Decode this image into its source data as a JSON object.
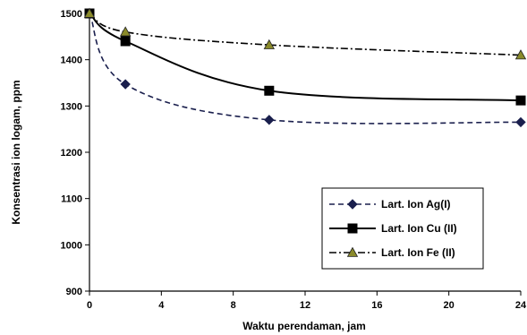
{
  "chart_data": {
    "type": "line",
    "title": "",
    "xlabel": "Waktu perendaman, jam",
    "ylabel": "Konsentrasi ion logam, ppm",
    "xlim": [
      0,
      24
    ],
    "ylim": [
      900,
      1500
    ],
    "xticks": [
      "0",
      "4",
      "8",
      "12",
      "16",
      "20",
      "24"
    ],
    "yticks": [
      "900",
      "1000",
      "1100",
      "1200",
      "1300",
      "1400",
      "1500"
    ],
    "grid": false,
    "legend_position": "bottom-right",
    "series": [
      {
        "name": "Lart. Ion Ag(I)",
        "marker": "diamond",
        "dash": "dashed",
        "color": "#1a1f4d",
        "x": [
          0,
          2,
          10,
          24
        ],
        "y": [
          1500,
          1347,
          1270,
          1265
        ]
      },
      {
        "name": "Lart. Ion Cu (II)",
        "marker": "square",
        "dash": "solid",
        "color": "#000000",
        "x": [
          0,
          2,
          10,
          24
        ],
        "y": [
          1500,
          1440,
          1333,
          1312
        ]
      },
      {
        "name": "Lart. Ion Fe (II)",
        "marker": "triangle",
        "dash": "dashdot",
        "color": "#000000",
        "x": [
          0,
          2,
          10,
          24
        ],
        "y": [
          1500,
          1460,
          1432,
          1410
        ]
      }
    ]
  }
}
